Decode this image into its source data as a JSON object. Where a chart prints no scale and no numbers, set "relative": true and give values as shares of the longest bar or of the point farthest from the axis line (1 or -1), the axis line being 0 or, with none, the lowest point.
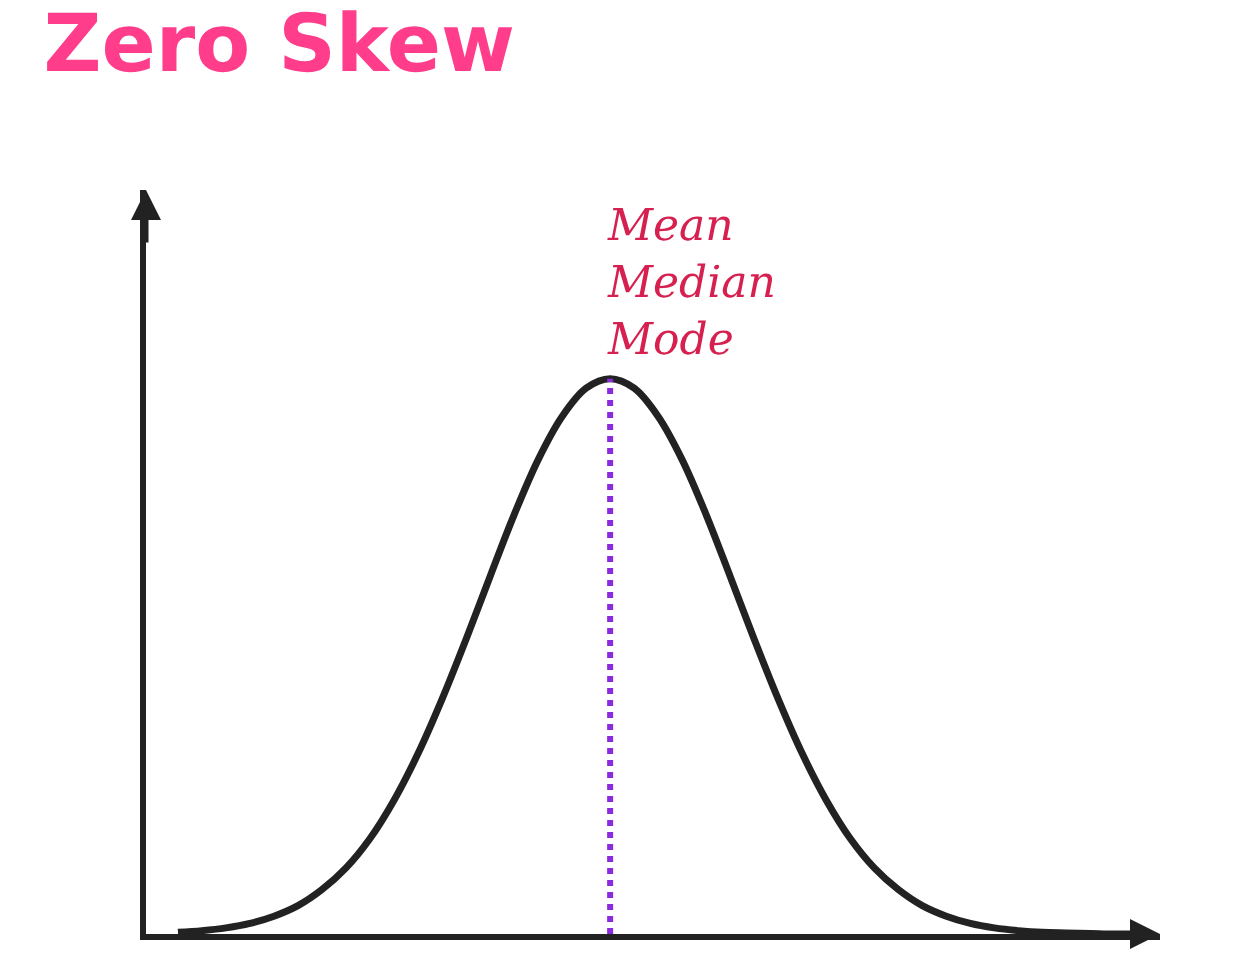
{
  "chart_data": {
    "type": "line",
    "title": "Zero Skew",
    "relative": true,
    "categories": [
      null,
      null,
      null,
      null,
      null,
      null,
      null,
      null,
      null,
      null,
      null,
      null,
      null,
      null,
      null,
      null,
      null,
      null,
      null,
      null,
      null,
      null,
      null,
      null,
      null,
      null,
      null,
      null,
      null,
      null,
      null,
      null,
      null,
      null,
      null,
      null,
      null,
      null,
      null,
      null,
      null
    ],
    "series": [
      {
        "color": "#222222",
        "values": [
          0.003,
          0.006,
          0.011,
          0.019,
          0.032,
          0.051,
          0.08,
          0.119,
          0.172,
          0.241,
          0.325,
          0.423,
          0.531,
          0.644,
          0.755,
          0.854,
          0.932,
          0.983,
          1,
          0.983,
          0.932,
          0.854,
          0.755,
          0.644,
          0.531,
          0.423,
          0.325,
          0.241,
          0.172,
          0.119,
          0.08,
          0.051,
          0.032,
          0.019,
          0.011,
          0.006,
          0.003,
          0.002,
          0.001,
          0,
          0
        ]
      }
    ],
    "annotations": [
      "Mean\nMedian\nMode"
    ],
    "marker": "none",
    "line_style": "solid"
  }
}
